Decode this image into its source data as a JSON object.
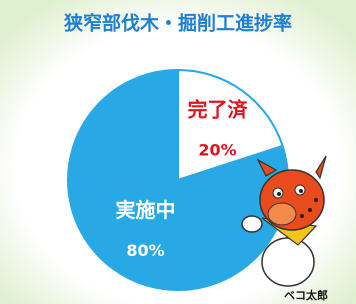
{
  "chart_data": {
    "type": "pie",
    "title": "狭窄部伐木・掘削工進捗率",
    "categories": [
      "完了済",
      "実施中"
    ],
    "values": [
      20,
      80
    ],
    "value_labels": [
      "20%",
      "80%"
    ],
    "colors": [
      "#ffffff",
      "#29a8e6"
    ],
    "label_colors": [
      "#e0141e",
      "#ffffff"
    ],
    "caption": "ベコ太郎"
  }
}
